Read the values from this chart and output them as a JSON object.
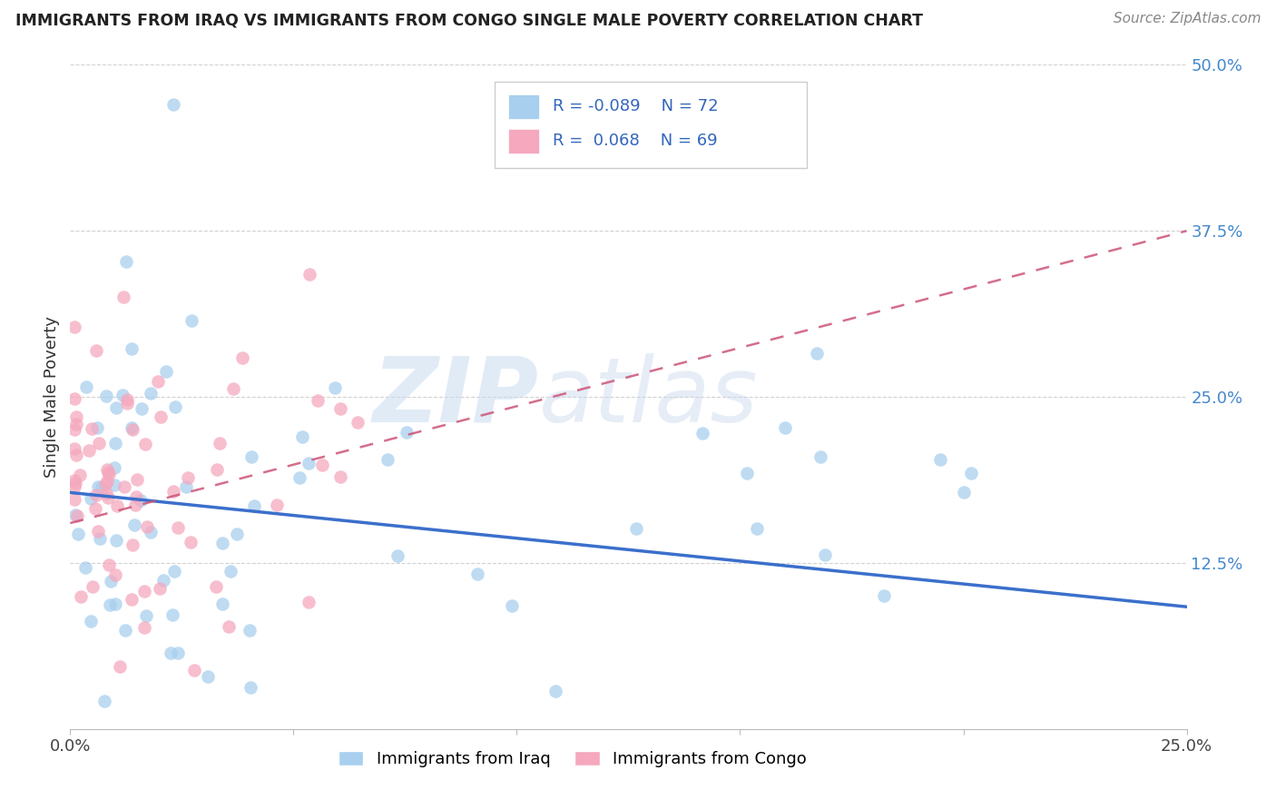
{
  "title": "IMMIGRANTS FROM IRAQ VS IMMIGRANTS FROM CONGO SINGLE MALE POVERTY CORRELATION CHART",
  "source": "Source: ZipAtlas.com",
  "ylabel": "Single Male Poverty",
  "ytick_labels": [
    "",
    "12.5%",
    "25.0%",
    "37.5%",
    "50.0%"
  ],
  "xlim": [
    0.0,
    0.25
  ],
  "ylim": [
    0.0,
    0.5
  ],
  "legend_iraq_R": "-0.089",
  "legend_iraq_N": "72",
  "legend_congo_R": "0.068",
  "legend_congo_N": "69",
  "iraq_color": "#A8CFEE",
  "congo_color": "#F5A8BE",
  "iraq_line_color": "#3B6FCC",
  "congo_line_color": "#CC5577",
  "watermark_zip": "ZIP",
  "watermark_atlas": "atlas",
  "iraq_line_x": [
    0.0,
    0.25
  ],
  "iraq_line_y": [
    0.178,
    0.092
  ],
  "congo_line_x": [
    0.0,
    0.25
  ],
  "congo_line_y": [
    0.155,
    0.375
  ]
}
